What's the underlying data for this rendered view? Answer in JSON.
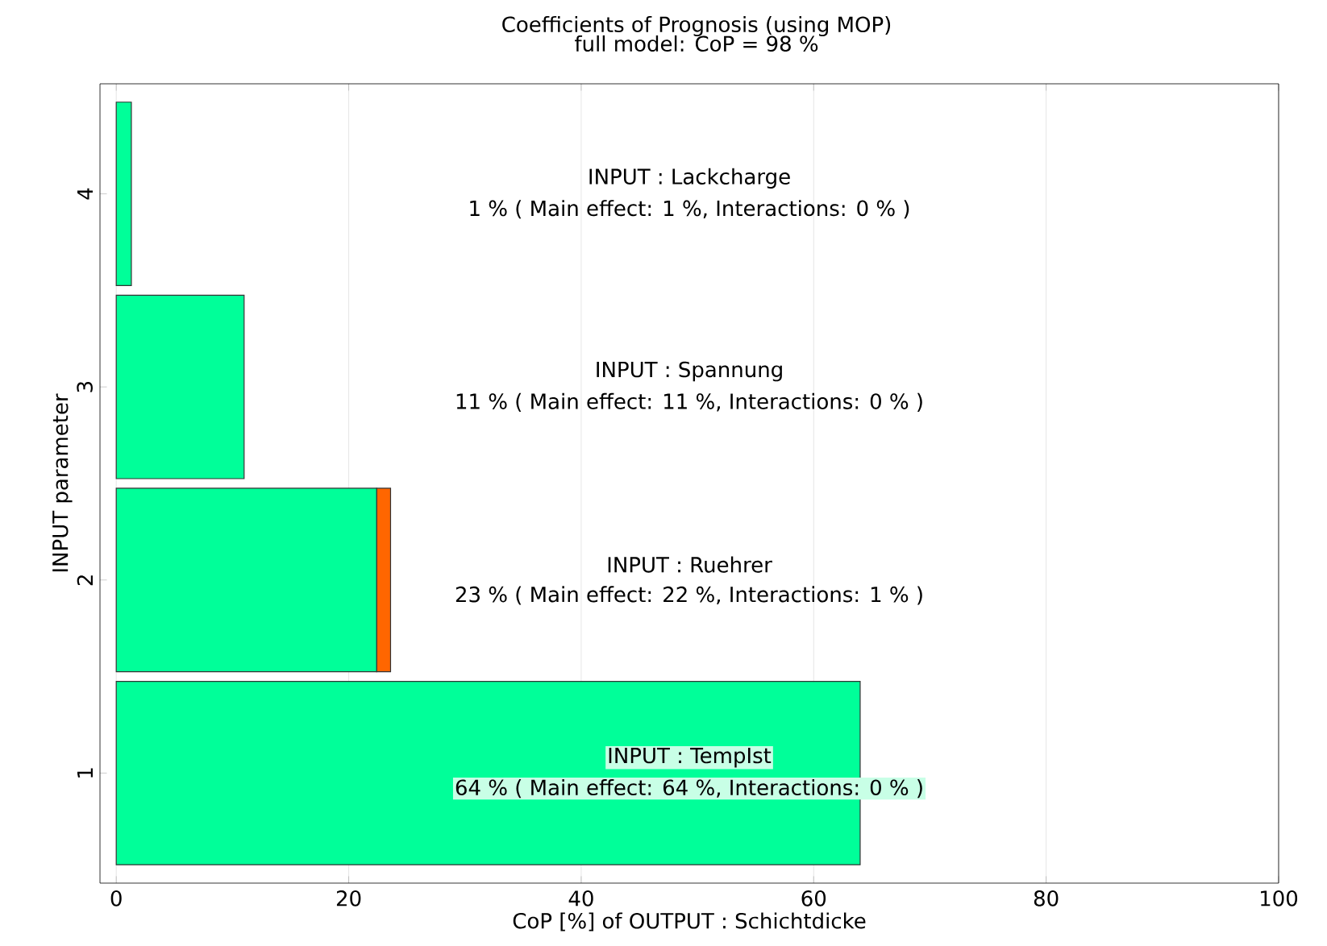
{
  "chart_data": {
    "type": "bar",
    "orientation": "horizontal",
    "stacked": true,
    "title": "Coefficients of Prognosis (using MOP)",
    "subtitle": "full model: CoP = 98 %",
    "xlabel": "CoP [%] of OUTPUT : Schichtdicke",
    "ylabel": "INPUT parameter",
    "categories": [
      "4",
      "3",
      "2",
      "1"
    ],
    "series": [
      {
        "color": "#00ff99",
        "values": [
          1.3,
          11,
          22.4,
          64
        ]
      },
      {
        "color": "#ff6600",
        "values": [
          0,
          0,
          1.2,
          0
        ]
      }
    ],
    "xlim": [
      -1.4,
      100
    ],
    "xticks": [
      0,
      20,
      40,
      60,
      80,
      100
    ],
    "grid": "x",
    "annotations": [
      "INPUT : Lackcharge",
      "1 % ( Main effect: 1 %, Interactions: 0 % )",
      "INPUT : Spannung",
      "11 % ( Main effect: 11 %, Interactions: 0 % )",
      "INPUT : Ruehrer",
      "23 % ( Main effect: 22 %, Interactions: 1 % )",
      "INPUT : TempIst",
      "64 % ( Main effect: 64 %, Interactions: 0 % )"
    ]
  }
}
